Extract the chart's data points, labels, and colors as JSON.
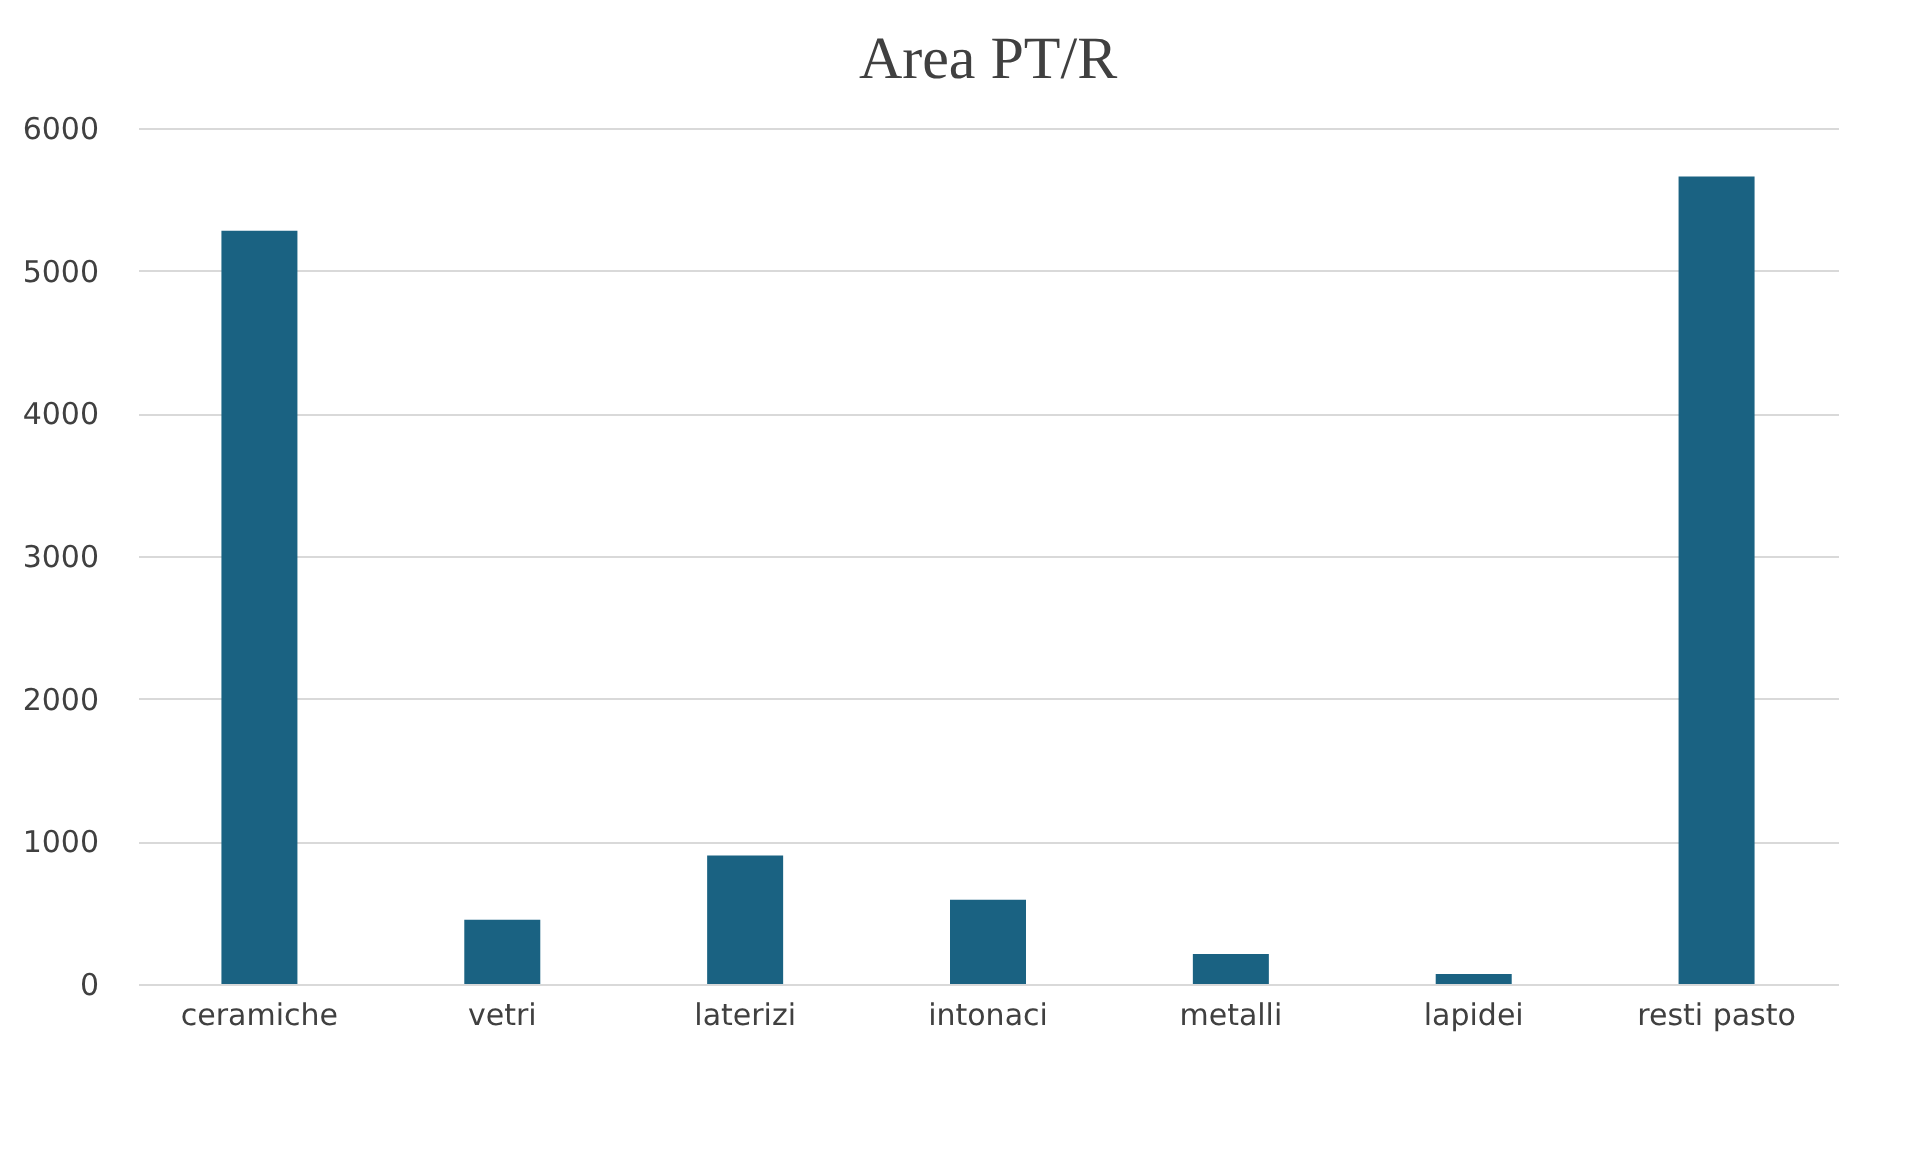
{
  "chart_data": {
    "type": "bar",
    "title": "Area PT/R",
    "categories": [
      "ceramiche",
      "vetri",
      "laterizi",
      "intonaci",
      "metalli",
      "lapidei",
      "resti pasto"
    ],
    "values": [
      5280,
      450,
      900,
      590,
      210,
      70,
      5660
    ],
    "color": "#1a6282",
    "ylim": [
      0,
      6000
    ],
    "yticks": [
      0,
      1000,
      2000,
      3000,
      4000,
      5000,
      6000
    ],
    "grid": "y"
  }
}
